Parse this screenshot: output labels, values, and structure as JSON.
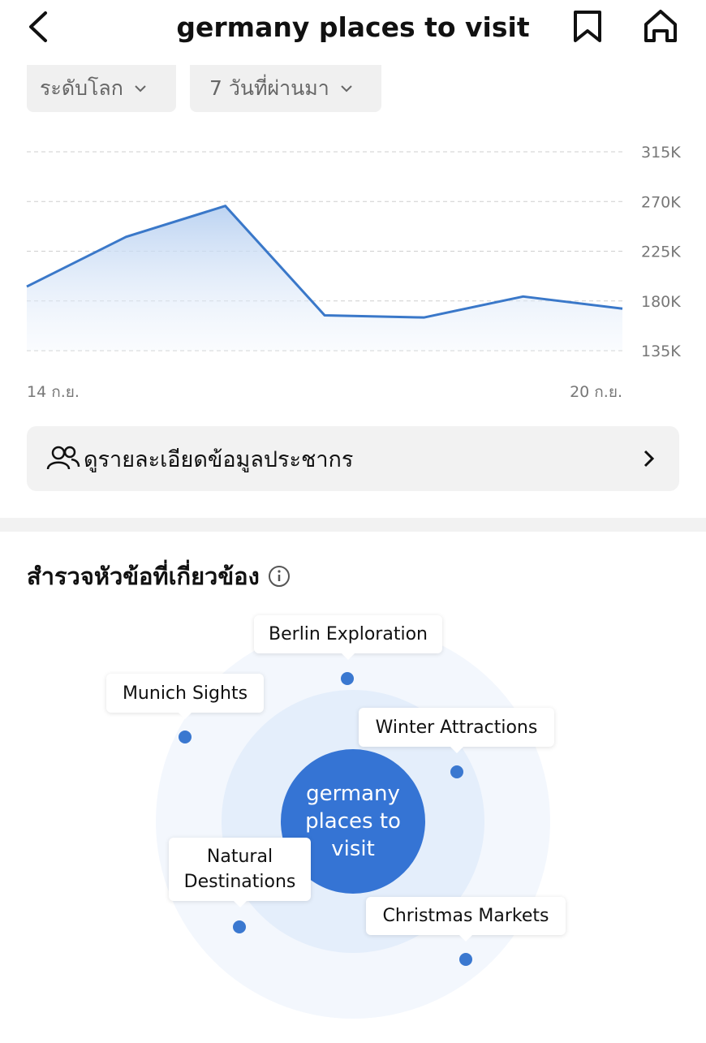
{
  "header": {
    "title": "germany places to visit"
  },
  "filters": [
    "ระดับโลก",
    "7 วันที่ผ่านมา"
  ],
  "chart_data": {
    "type": "line",
    "categories": [
      "14 ก.ย.",
      null,
      null,
      null,
      null,
      null,
      "20 ก.ย."
    ],
    "values": [
      193000,
      238000,
      266000,
      167000,
      165000,
      184000,
      173000
    ],
    "color": "#3a78c9",
    "ylim": [
      135000,
      315000
    ],
    "yticks": [
      {
        "value": 135000,
        "label": "135K"
      },
      {
        "value": 180000,
        "label": "180K"
      },
      {
        "value": 225000,
        "label": "225K"
      },
      {
        "value": 270000,
        "label": "270K"
      },
      {
        "value": 315000,
        "label": "315K"
      }
    ],
    "grid": true
  },
  "demographics_button": "ดูรายละเอียดข้อมูลประชากร",
  "related": {
    "title": "สำรวจหัวข้อที่เกี่ยวข้อง",
    "center": "germany places to visit",
    "topics": [
      "Berlin Exploration",
      "Munich Sights",
      "Winter Attractions",
      "Natural Destinations",
      "Christmas Markets"
    ]
  }
}
